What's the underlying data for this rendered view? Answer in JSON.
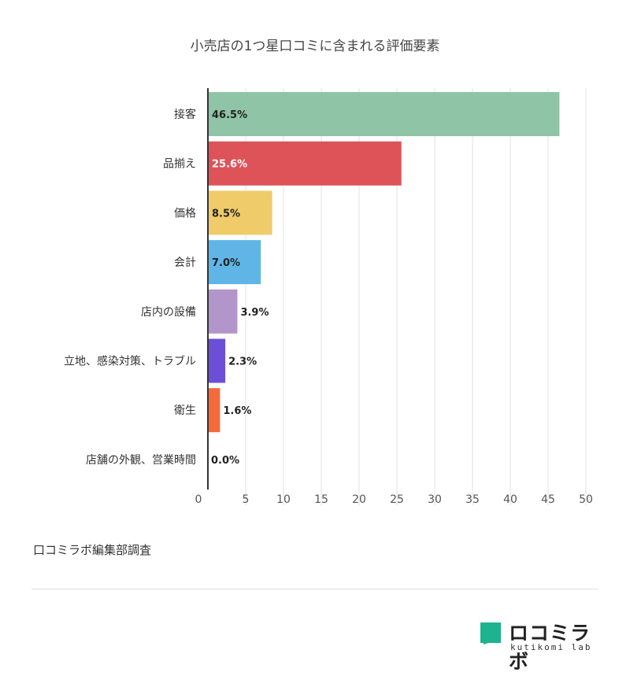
{
  "chart_data": {
    "type": "bar",
    "orientation": "horizontal",
    "title": "小売店の1つ星口コミに含まれる評価要素",
    "categories": [
      "接客",
      "品揃え",
      "価格",
      "会計",
      "店内の設備",
      "立地、感染対策、トラブル",
      "衛生",
      "店舗の外観、営業時間"
    ],
    "values": [
      46.5,
      25.6,
      8.5,
      7.0,
      3.9,
      2.3,
      1.6,
      0.0
    ],
    "value_labels": [
      "46.5%",
      "25.6%",
      "8.5%",
      "7.0%",
      "3.9%",
      "2.3%",
      "1.6%",
      "0.0%"
    ],
    "colors": [
      "#8fc4a6",
      "#dd5358",
      "#f0cb6a",
      "#5fb6e6",
      "#b295c9",
      "#6c4fd6",
      "#f46a3b",
      "#b0b0b0"
    ],
    "value_label_colors": [
      "#222222",
      "#ffffff",
      "#222222",
      "#222222",
      "#222222",
      "#222222",
      "#222222",
      "#222222"
    ],
    "xlim": [
      0,
      50
    ],
    "xticks": [
      0,
      5,
      10,
      15,
      20,
      25,
      30,
      35,
      40,
      45,
      50
    ],
    "grid": true,
    "legend": "none"
  },
  "footer": {
    "source": "口コミラボ編集部調査"
  },
  "brand": {
    "name": "ロコミラボ",
    "subtitle": "kutikomi lab",
    "color": "#1db391"
  }
}
